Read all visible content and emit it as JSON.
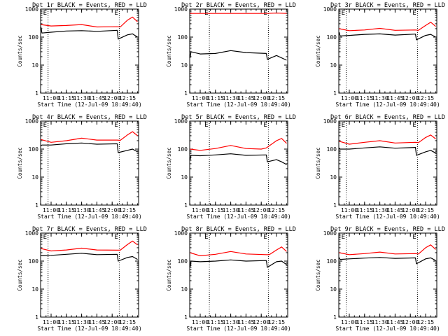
{
  "colors": {
    "background": "#ffffff",
    "axes": "#000000",
    "events": "#000000",
    "lld": "#ff0000"
  },
  "shared_axes": {
    "xlabel": "Start Time (12-Jul-09 10:49:40)",
    "ylabel": "Counts/sec",
    "xticks": [
      "11:00",
      "11:15",
      "11:30",
      "11:45",
      "12:00",
      "12:15"
    ],
    "yticks": [
      "1",
      "10",
      "100",
      "1000"
    ],
    "corner_markers": [
      "E",
      "E"
    ]
  },
  "chart_data": [
    {
      "type": "line",
      "title": "Det 1r BLACK = Events, RED = LLD",
      "x_range": [
        "10:49:40",
        "12:26"
      ],
      "yscale": "log",
      "ylim": [
        1,
        1000
      ],
      "dotted_lines_at": [
        "10:57",
        "12:07"
      ],
      "series": [
        {
          "color": "#ff0000",
          "points": [
            [
              "10:50",
              280
            ],
            [
              "11:00",
              250
            ],
            [
              "11:15",
              260
            ],
            [
              "11:30",
              280
            ],
            [
              "11:45",
              230
            ],
            [
              "12:05",
              235
            ],
            [
              "12:08",
              230
            ],
            [
              "12:15",
              400
            ],
            [
              "12:20",
              520
            ],
            [
              "12:25",
              350
            ]
          ]
        },
        {
          "color": "#000000",
          "points": [
            [
              "10:50",
              230
            ],
            [
              "10:51",
              140
            ],
            [
              "11:00",
              150
            ],
            [
              "11:15",
              165
            ],
            [
              "11:30",
              170
            ],
            [
              "11:45",
              160
            ],
            [
              "12:05",
              175
            ],
            [
              "12:06",
              85
            ],
            [
              "12:15",
              120
            ],
            [
              "12:20",
              130
            ],
            [
              "12:25",
              100
            ]
          ]
        }
      ]
    },
    {
      "type": "line",
      "title": "Det 2r BLACK = Events, RED = LLD",
      "x_range": [
        "10:49:40",
        "12:26"
      ],
      "yscale": "log",
      "ylim": [
        1,
        1000
      ],
      "dotted_lines_at": [
        "11:09",
        "12:07"
      ],
      "series": [
        {
          "color": "#ff0000",
          "points": [
            [
              "10:50",
              700
            ],
            [
              "11:15",
              700
            ],
            [
              "11:45",
              700
            ],
            [
              "12:05",
              700
            ],
            [
              "12:15",
              720
            ],
            [
              "12:25",
              700
            ]
          ]
        },
        {
          "color": "#000000",
          "points": [
            [
              "10:50",
              18
            ],
            [
              "10:51",
              30
            ],
            [
              "11:00",
              25
            ],
            [
              "11:15",
              26
            ],
            [
              "11:30",
              33
            ],
            [
              "11:45",
              28
            ],
            [
              "12:05",
              26
            ],
            [
              "12:06",
              16
            ],
            [
              "12:15",
              22
            ],
            [
              "12:25",
              15
            ]
          ]
        }
      ]
    },
    {
      "type": "line",
      "title": "Det 3r BLACK = Events, RED = LLD",
      "x_range": [
        "10:49:40",
        "12:26"
      ],
      "yscale": "log",
      "ylim": [
        1,
        1000
      ],
      "dotted_lines_at": [
        "10:57",
        "12:07"
      ],
      "series": [
        {
          "color": "#ff0000",
          "points": [
            [
              "10:50",
              200
            ],
            [
              "11:00",
              170
            ],
            [
              "11:15",
              180
            ],
            [
              "11:30",
              205
            ],
            [
              "11:45",
              175
            ],
            [
              "12:05",
              180
            ],
            [
              "12:08",
              175
            ],
            [
              "12:15",
              260
            ],
            [
              "12:20",
              340
            ],
            [
              "12:25",
              240
            ]
          ]
        },
        {
          "color": "#000000",
          "points": [
            [
              "10:50",
              150
            ],
            [
              "10:51",
              110
            ],
            [
              "11:00",
              115
            ],
            [
              "11:15",
              125
            ],
            [
              "11:30",
              130
            ],
            [
              "11:45",
              118
            ],
            [
              "12:05",
              128
            ],
            [
              "12:06",
              80
            ],
            [
              "12:15",
              115
            ],
            [
              "12:20",
              125
            ],
            [
              "12:25",
              100
            ]
          ]
        }
      ]
    },
    {
      "type": "line",
      "title": "Det 4r BLACK = Events, RED = LLD",
      "x_range": [
        "10:49:40",
        "12:26"
      ],
      "yscale": "log",
      "ylim": [
        1,
        1000
      ],
      "dotted_lines_at": [
        "10:57",
        "12:07"
      ],
      "series": [
        {
          "color": "#ff0000",
          "points": [
            [
              "10:50",
              220
            ],
            [
              "11:00",
              175
            ],
            [
              "11:15",
              200
            ],
            [
              "11:30",
              245
            ],
            [
              "11:45",
              210
            ],
            [
              "12:05",
              210
            ],
            [
              "12:08",
              205
            ],
            [
              "12:15",
              320
            ],
            [
              "12:20",
              420
            ],
            [
              "12:25",
              300
            ]
          ]
        },
        {
          "color": "#000000",
          "points": [
            [
              "10:50",
              130
            ],
            [
              "10:51",
              140
            ],
            [
              "11:00",
              140
            ],
            [
              "11:15",
              155
            ],
            [
              "11:30",
              165
            ],
            [
              "11:45",
              150
            ],
            [
              "12:05",
              155
            ],
            [
              "12:06",
              75
            ],
            [
              "12:15",
              90
            ],
            [
              "12:20",
              100
            ],
            [
              "12:25",
              80
            ]
          ]
        }
      ]
    },
    {
      "type": "line",
      "title": "Det 5r BLACK = Events, RED = LLD",
      "x_range": [
        "10:49:40",
        "12:26"
      ],
      "yscale": "log",
      "ylim": [
        1,
        1000
      ],
      "dotted_lines_at": [
        "11:09",
        "12:07"
      ],
      "series": [
        {
          "color": "#ff0000",
          "points": [
            [
              "10:50",
              100
            ],
            [
              "11:00",
              90
            ],
            [
              "11:15",
              105
            ],
            [
              "11:30",
              135
            ],
            [
              "11:45",
              105
            ],
            [
              "12:00",
              100
            ],
            [
              "12:05",
              110
            ],
            [
              "12:15",
              200
            ],
            [
              "12:20",
              240
            ],
            [
              "12:25",
              160
            ]
          ]
        },
        {
          "color": "#000000",
          "points": [
            [
              "10:50",
              40
            ],
            [
              "10:51",
              60
            ],
            [
              "11:00",
              58
            ],
            [
              "11:15",
              62
            ],
            [
              "11:30",
              68
            ],
            [
              "11:45",
              60
            ],
            [
              "12:05",
              62
            ],
            [
              "12:06",
              35
            ],
            [
              "12:15",
              42
            ],
            [
              "12:20",
              35
            ],
            [
              "12:25",
              28
            ]
          ]
        }
      ]
    },
    {
      "type": "line",
      "title": "Det 6r BLACK = Events, RED = LLD",
      "x_range": [
        "10:49:40",
        "12:26"
      ],
      "yscale": "log",
      "ylim": [
        1,
        1000
      ],
      "dotted_lines_at": [
        "10:57",
        "12:07"
      ],
      "series": [
        {
          "color": "#ff0000",
          "points": [
            [
              "10:50",
              190
            ],
            [
              "11:00",
              150
            ],
            [
              "11:15",
              175
            ],
            [
              "11:30",
              200
            ],
            [
              "11:45",
              165
            ],
            [
              "12:05",
              175
            ],
            [
              "12:08",
              170
            ],
            [
              "12:15",
              260
            ],
            [
              "12:20",
              320
            ],
            [
              "12:25",
              230
            ]
          ]
        },
        {
          "color": "#000000",
          "points": [
            [
              "10:50",
              110
            ],
            [
              "10:51",
              100
            ],
            [
              "11:00",
              100
            ],
            [
              "11:15",
              110
            ],
            [
              "11:30",
              120
            ],
            [
              "11:45",
              108
            ],
            [
              "12:05",
              115
            ],
            [
              "12:06",
              60
            ],
            [
              "12:15",
              80
            ],
            [
              "12:20",
              90
            ],
            [
              "12:25",
              72
            ]
          ]
        }
      ]
    },
    {
      "type": "line",
      "title": "Det 7r BLACK = Events, RED = LLD",
      "x_range": [
        "10:49:40",
        "12:26"
      ],
      "yscale": "log",
      "ylim": [
        1,
        1000
      ],
      "dotted_lines_at": [
        "10:57",
        "12:07"
      ],
      "series": [
        {
          "color": "#ff0000",
          "points": [
            [
              "10:50",
              280
            ],
            [
              "11:00",
              230
            ],
            [
              "11:15",
              250
            ],
            [
              "11:30",
              290
            ],
            [
              "11:45",
              250
            ],
            [
              "12:05",
              245
            ],
            [
              "12:08",
              245
            ],
            [
              "12:15",
              390
            ],
            [
              "12:20",
              520
            ],
            [
              "12:25",
              380
            ]
          ]
        },
        {
          "color": "#000000",
          "points": [
            [
              "10:50",
              160
            ],
            [
              "10:51",
              155
            ],
            [
              "11:00",
              160
            ],
            [
              "11:15",
              175
            ],
            [
              "11:30",
              190
            ],
            [
              "11:45",
              170
            ],
            [
              "12:05",
              175
            ],
            [
              "12:06",
              100
            ],
            [
              "12:15",
              135
            ],
            [
              "12:20",
              145
            ],
            [
              "12:25",
              115
            ]
          ]
        }
      ]
    },
    {
      "type": "line",
      "title": "Det 8r BLACK = Events, RED = LLD",
      "x_range": [
        "10:49:40",
        "12:26"
      ],
      "yscale": "log",
      "ylim": [
        1,
        1000
      ],
      "dotted_lines_at": [
        "11:09",
        "12:07"
      ],
      "series": [
        {
          "color": "#ff0000",
          "points": [
            [
              "10:50",
              200
            ],
            [
              "11:00",
              155
            ],
            [
              "11:15",
              175
            ],
            [
              "11:30",
              220
            ],
            [
              "11:45",
              180
            ],
            [
              "12:05",
              170
            ],
            [
              "12:08",
              170
            ],
            [
              "12:15",
              250
            ],
            [
              "12:20",
              320
            ],
            [
              "12:25",
              220
            ]
          ]
        },
        {
          "color": "#000000",
          "points": [
            [
              "10:50",
              60
            ],
            [
              "10:51",
              100
            ],
            [
              "11:00",
              95
            ],
            [
              "11:15",
              100
            ],
            [
              "11:30",
              110
            ],
            [
              "11:45",
              100
            ],
            [
              "12:05",
              105
            ],
            [
              "12:06",
              60
            ],
            [
              "12:15",
              95
            ],
            [
              "12:20",
              100
            ],
            [
              "12:25",
              75
            ]
          ]
        }
      ]
    },
    {
      "type": "line",
      "title": "Det 9r BLACK = Events, RED = LLD",
      "x_range": [
        "10:49:40",
        "12:26"
      ],
      "yscale": "log",
      "ylim": [
        1,
        1000
      ],
      "dotted_lines_at": [
        "10:57",
        "12:07"
      ],
      "series": [
        {
          "color": "#ff0000",
          "points": [
            [
              "10:50",
              200
            ],
            [
              "11:00",
              170
            ],
            [
              "11:15",
              185
            ],
            [
              "11:30",
              210
            ],
            [
              "11:45",
              180
            ],
            [
              "12:05",
              185
            ],
            [
              "12:08",
              180
            ],
            [
              "12:15",
              300
            ],
            [
              "12:20",
              380
            ],
            [
              "12:25",
              260
            ]
          ]
        },
        {
          "color": "#000000",
          "points": [
            [
              "10:50",
              135
            ],
            [
              "10:51",
              115
            ],
            [
              "11:00",
              120
            ],
            [
              "11:15",
              128
            ],
            [
              "11:30",
              135
            ],
            [
              "11:45",
              125
            ],
            [
              "12:05",
              130
            ],
            [
              "12:06",
              80
            ],
            [
              "12:15",
              120
            ],
            [
              "12:20",
              130
            ],
            [
              "12:25",
              105
            ]
          ]
        }
      ]
    }
  ]
}
